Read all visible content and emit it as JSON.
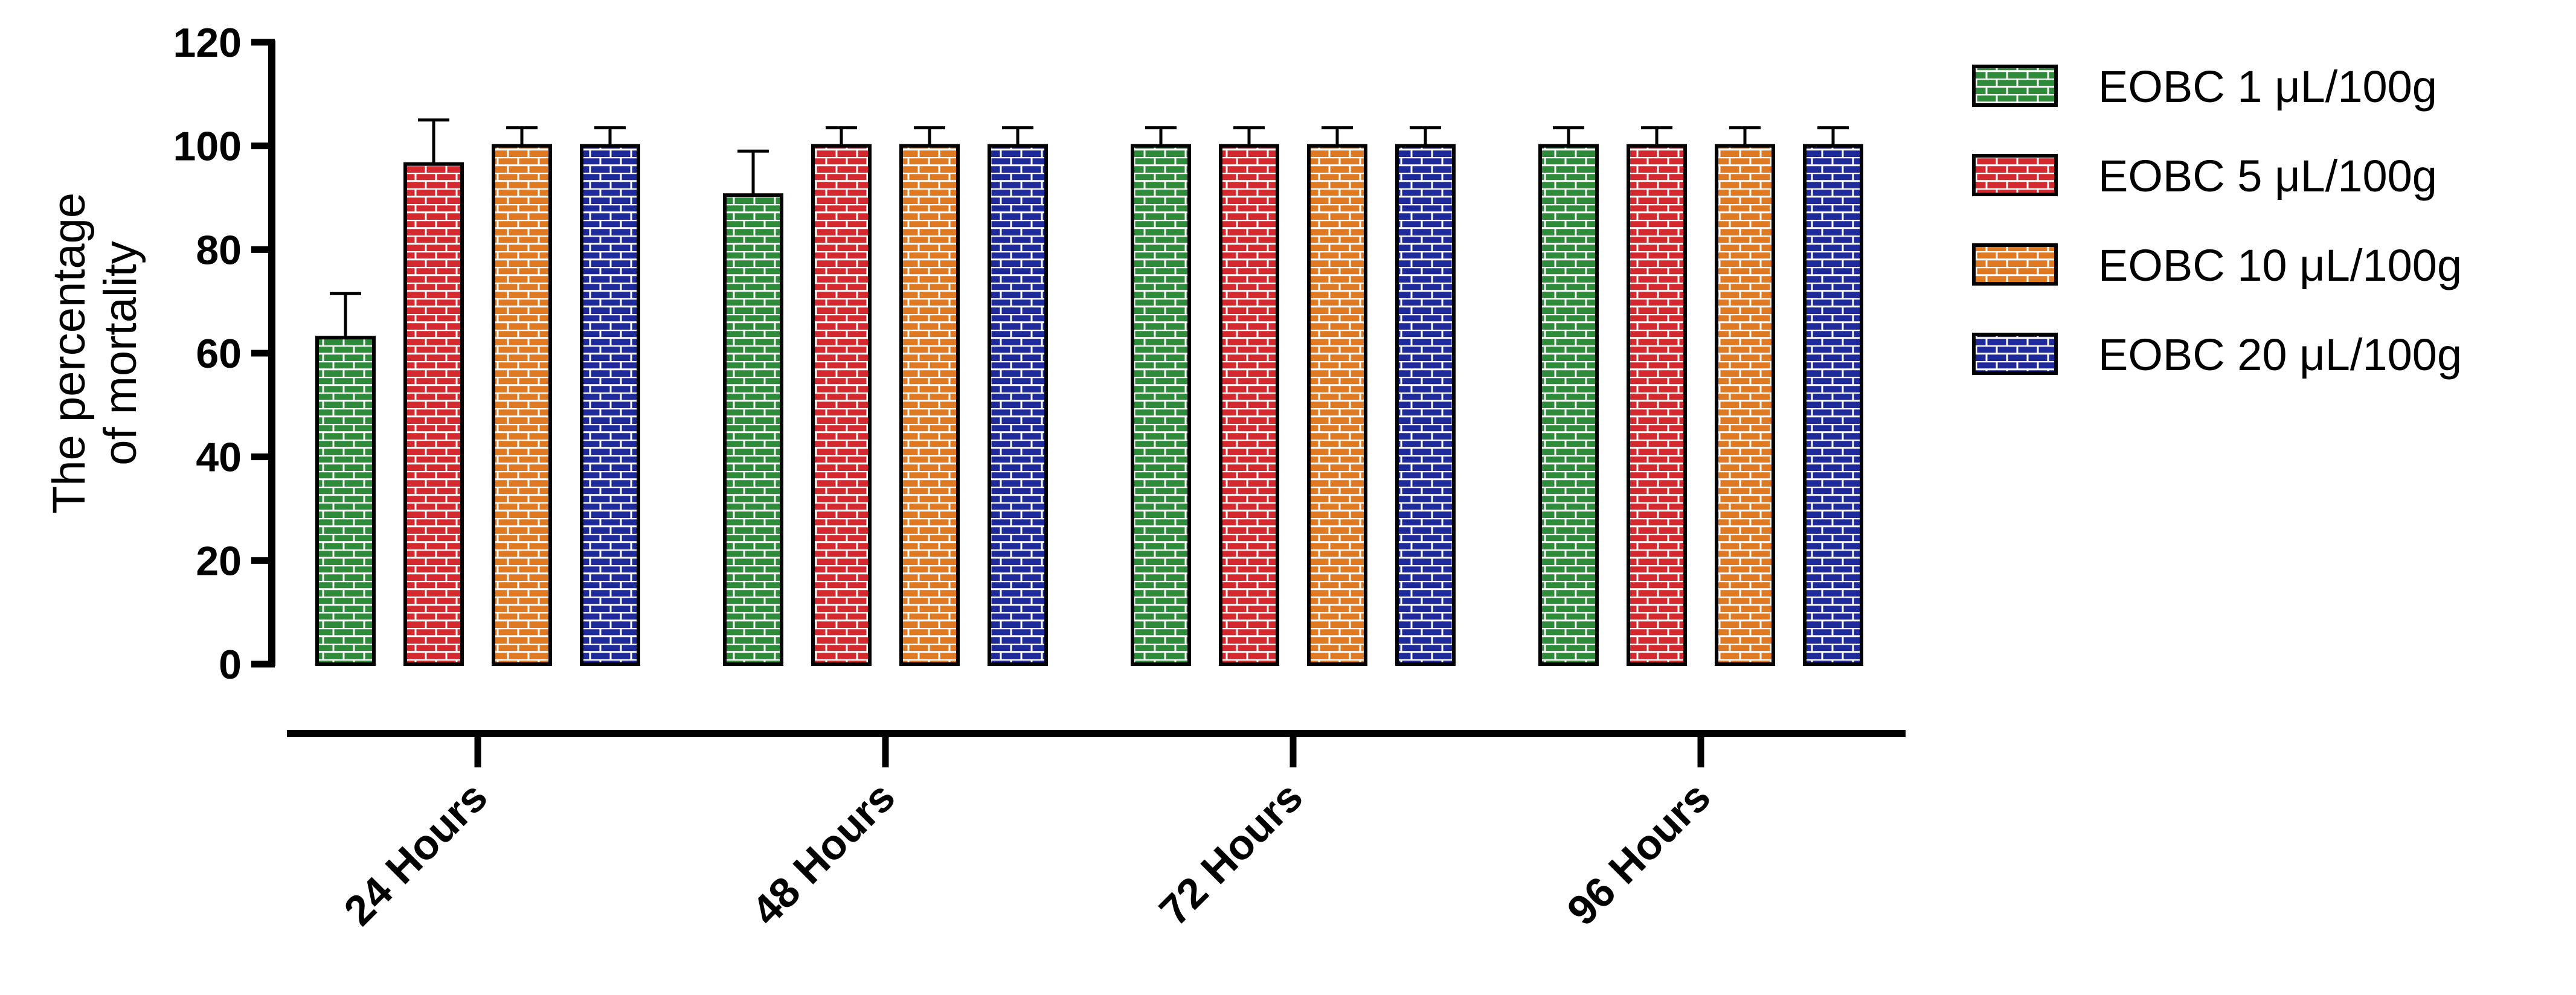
{
  "chart_data": {
    "type": "bar",
    "title": "",
    "ylabel": "The percentage of mortality",
    "ylabel_lines": [
      "The percentage",
      "of mortality"
    ],
    "xlabel": "",
    "ylim": [
      0,
      120
    ],
    "yticks": [
      0,
      20,
      40,
      60,
      80,
      100,
      120
    ],
    "ytick_labels": [
      "0",
      "20",
      "40",
      "60",
      "80",
      "100",
      "120"
    ],
    "grid": false,
    "legend_position": "right",
    "bar_pattern": "brick",
    "categories": [
      "24 Hours",
      "48 Hours",
      "72 Hours",
      "96 Hours"
    ],
    "series": [
      {
        "name": "EOBC 1 μL/100g",
        "color": "#2E8B3A",
        "values": [
          63,
          90.5,
          100,
          100
        ],
        "errors": [
          8.5,
          8.5,
          3.5,
          3.5
        ]
      },
      {
        "name": "EOBC 5 μL/100g",
        "color": "#D42A2F",
        "values": [
          96.5,
          100,
          100,
          100
        ],
        "errors": [
          8.5,
          3.5,
          3.5,
          3.5
        ]
      },
      {
        "name": "EOBC 10 μL/100g",
        "color": "#E07A22",
        "values": [
          100,
          100,
          100,
          100
        ],
        "errors": [
          3.5,
          3.5,
          3.5,
          3.5
        ]
      },
      {
        "name": "EOBC 20 μL/100g",
        "color": "#1E2A9A",
        "values": [
          100,
          100,
          100,
          100
        ],
        "errors": [
          3.5,
          3.5,
          3.5,
          3.5
        ]
      }
    ]
  }
}
